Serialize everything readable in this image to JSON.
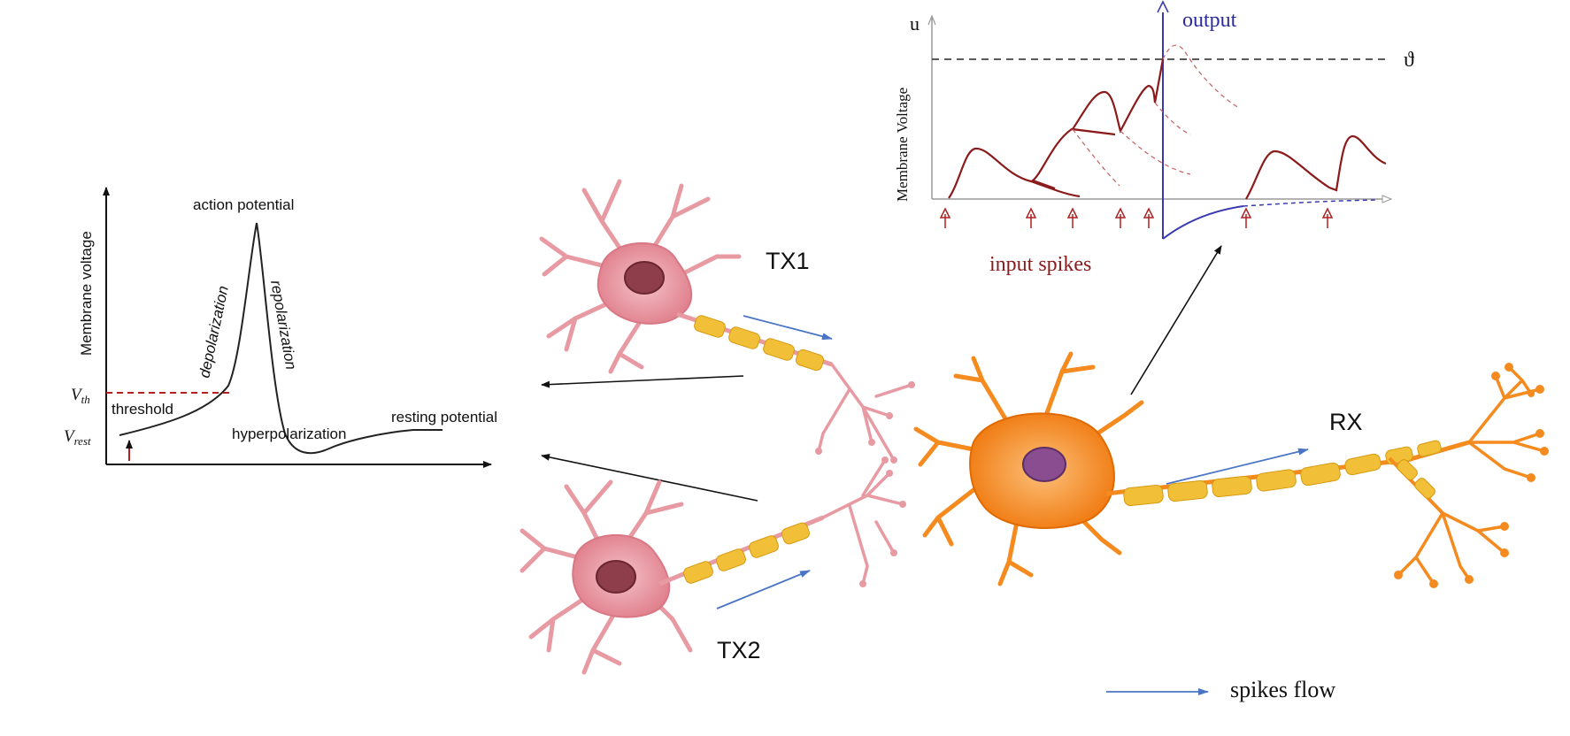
{
  "action_potential_plot": {
    "ylabel": "Membrane voltage",
    "v_th_label": "V",
    "v_th_sub": "th",
    "v_rest_label": "V",
    "v_rest_sub": "rest",
    "labels": {
      "action_potential": "action potential",
      "depolarization": "depolarization",
      "repolarization": "repolarization",
      "threshold": "threshold",
      "hyperpolarization": "hyperpolarization",
      "resting_potential": "resting potential"
    }
  },
  "membrane_plot": {
    "u_label": "u",
    "ylabel": "Membrane Voltage",
    "output_label": "output",
    "theta_label": "ϑ",
    "input_label": "input spikes"
  },
  "neurons": {
    "tx1": "TX1",
    "tx2": "TX2",
    "rx": "RX"
  },
  "legend": {
    "spikes_flow": "spikes flow"
  },
  "colors": {
    "dark_red": "#8b1a1a",
    "blue": "#3a3ab0",
    "arrow_blue": "#4a74c4",
    "tx_body": "#e89aa3",
    "rx_body": "#f58a1f",
    "myelin": "#f2c038"
  }
}
